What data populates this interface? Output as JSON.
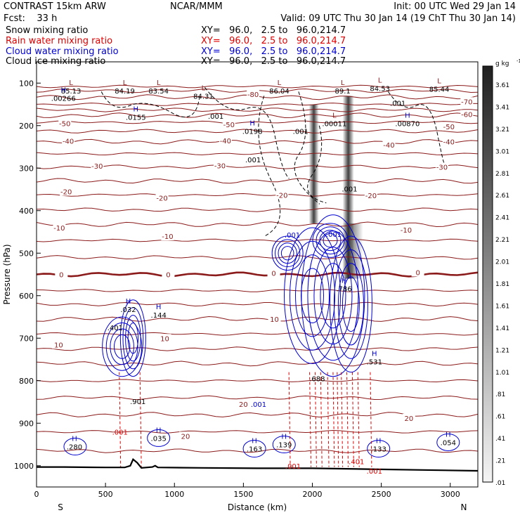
{
  "header": {
    "left_line1": "CONTRAST 15km ARW",
    "center_line1": "NCAR/MMM",
    "right_line1": "Init: 00 UTC Wed 29 Jan 14",
    "left_line2": "Fcst:    33 h",
    "right_line2": "Valid: 09 UTC Thu 30 Jan 14 (19 ChT Thu 30 Jan 14)",
    "fields": [
      {
        "label": "Snow mixing ratio",
        "xy": "XY=   96.0,   2.5 to   96.0,214.7",
        "color": "#000000"
      },
      {
        "label": "Rain water mixing ratio",
        "xy": "XY=   96.0,   2.5 to   96.0,214.7",
        "color": "#e00000"
      },
      {
        "label": "Cloud water mixing ratio",
        "xy": "XY=   96.0,   2.5 to   96.0,214.7",
        "color": "#0000d0"
      },
      {
        "label": "Cloud ice mixing ratio",
        "xy": "XY=   96.0,   2.5 to   96.0,214.7",
        "color": "#000000"
      }
    ]
  },
  "chart_data": {
    "type": "line",
    "xlabel": "Distance (km)",
    "ylabel": "Pressure (hPa)",
    "xlim": [
      0,
      3200
    ],
    "ylim": [
      1050,
      50
    ],
    "x_ticks": [
      0,
      500,
      1000,
      1500,
      2000,
      2500,
      3000
    ],
    "y_ticks": [
      100,
      200,
      300,
      400,
      500,
      600,
      700,
      800,
      900,
      1000
    ],
    "x_end_labels": {
      "left": "S",
      "right": "N"
    },
    "colorbar": {
      "unit": "g kg",
      "unit_sup": "-1",
      "labels": [
        "3.61",
        "3.41",
        "3.21",
        "3.01",
        "2.81",
        "2.61",
        "2.41",
        "2.21",
        "2.01",
        "1.81",
        "1.61",
        "1.41",
        "1.21",
        "1.01",
        ".81",
        ".61",
        ".41",
        ".21",
        ".01"
      ]
    },
    "temperature_contours": [
      {
        "label": "-80",
        "p": 126,
        "dx": 1570
      },
      {
        "label": "-70",
        "p": 143,
        "dx": 3120
      },
      {
        "label": "-60",
        "p": 173,
        "dx": 3120
      },
      {
        "label": "-50",
        "p": 195,
        "dx": 205
      },
      {
        "label": "-50",
        "p": 197,
        "dx": 1395
      },
      {
        "label": "-50",
        "p": 202,
        "dx": 2990
      },
      {
        "label": "-40",
        "p": 236,
        "dx": 230
      },
      {
        "label": "-40",
        "p": 235,
        "dx": 1370
      },
      {
        "label": "-40",
        "p": 245,
        "dx": 2555
      },
      {
        "label": "-40",
        "p": 238,
        "dx": 2990
      },
      {
        "label": "-30",
        "p": 295,
        "dx": 440
      },
      {
        "label": "-30",
        "p": 294,
        "dx": 1330
      },
      {
        "label": "-30",
        "p": 297,
        "dx": 2940
      },
      {
        "label": "-20",
        "p": 355,
        "dx": 215
      },
      {
        "label": "-20",
        "p": 370,
        "dx": 910
      },
      {
        "label": "-20",
        "p": 363,
        "dx": 1780
      },
      {
        "label": "-20",
        "p": 364,
        "dx": 2425
      },
      {
        "label": "-10",
        "p": 440,
        "dx": 165
      },
      {
        "label": "-10",
        "p": 460,
        "dx": 950
      },
      {
        "label": "-10",
        "p": 445,
        "dx": 2680
      },
      {
        "label": "0",
        "p": 550,
        "dx": 180
      },
      {
        "label": "0",
        "p": 550,
        "dx": 955
      },
      {
        "label": "0",
        "p": 547,
        "dx": 1720
      },
      {
        "label": "0",
        "p": 545,
        "dx": 2765
      },
      {
        "label": "10",
        "p": 655,
        "dx": 1725
      },
      {
        "label": "10",
        "p": 700,
        "dx": 930
      },
      {
        "label": "10",
        "p": 715,
        "dx": 160
      },
      {
        "label": "20",
        "p": 855,
        "dx": 1500
      },
      {
        "label": "20",
        "p": 888,
        "dx": 2700
      },
      {
        "label": "20",
        "p": 930,
        "dx": 1080
      }
    ],
    "extrema": [
      {
        "letter": "L",
        "value": "85.13",
        "dx": 250,
        "p": 118
      },
      {
        "letter": "L",
        "value": "84.19",
        "dx": 640,
        "p": 118
      },
      {
        "letter": "L",
        "value": "83.54",
        "dx": 885,
        "p": 118
      },
      {
        "letter": "L",
        "value": "84.31",
        "dx": 1210,
        "p": 130
      },
      {
        "letter": "L",
        "value": "86.04",
        "dx": 1760,
        "p": 118
      },
      {
        "letter": "L",
        "value": "89.1",
        "dx": 2220,
        "p": 118
      },
      {
        "letter": "L",
        "value": "84.53",
        "dx": 2490,
        "p": 112
      },
      {
        "letter": "L",
        "value": "85.44",
        "dx": 2920,
        "p": 114
      },
      {
        "letter": "H",
        "value": ".00266",
        "dx": 195,
        "p": 135
      },
      {
        "letter": "H",
        "value": ".0155",
        "dx": 720,
        "p": 180
      },
      {
        "letter": "H",
        "value": ".0198",
        "dx": 1565,
        "p": 213
      },
      {
        "letter": "L",
        "value": ".00011",
        "dx": 2160,
        "p": 195
      },
      {
        "letter": "H",
        "value": ".00870",
        "dx": 2690,
        "p": 195
      },
      {
        "letter": "H",
        "value": ".786",
        "dx": 2230,
        "p": 583
      },
      {
        "letter": "H",
        "value": ".032",
        "dx": 665,
        "p": 632
      },
      {
        "letter": "H",
        "value": ".144",
        "dx": 885,
        "p": 645
      },
      {
        "letter": "",
        "value": ".401",
        "dx": 570,
        "p": 675
      },
      {
        "letter": "H",
        "value": ".531",
        "dx": 2450,
        "p": 755
      },
      {
        "letter": "",
        "value": ".688",
        "dx": 2035,
        "p": 795
      },
      {
        "letter": "",
        "value": ".901",
        "dx": 735,
        "p": 848
      },
      {
        "letter": "H",
        "value": ".280",
        "dx": 275,
        "p": 955
      },
      {
        "letter": "H",
        "value": ".035",
        "dx": 885,
        "p": 935
      },
      {
        "letter": "H",
        "value": ".163",
        "dx": 1580,
        "p": 960
      },
      {
        "letter": "H",
        "value": ".139",
        "dx": 1795,
        "p": 950
      },
      {
        "letter": "H",
        "value": ".133",
        "dx": 2480,
        "p": 960
      },
      {
        "letter": "H",
        "value": ".054",
        "dx": 2985,
        "p": 945
      }
    ],
    "small_labels": [
      {
        "value": ".001",
        "dx": 2620,
        "p": 147,
        "color": "#000000"
      },
      {
        "value": ".001",
        "dx": 1300,
        "p": 177,
        "color": "#000000"
      },
      {
        "value": ".001",
        "dx": 1915,
        "p": 213,
        "color": "#000000"
      },
      {
        "value": ".001",
        "dx": 1570,
        "p": 280,
        "color": "#000000"
      },
      {
        "value": ".001",
        "dx": 2270,
        "p": 348,
        "color": "#000000"
      },
      {
        "value": ".001",
        "dx": 1855,
        "p": 457,
        "color": "#0000d0"
      },
      {
        "value": ".001",
        "dx": 2155,
        "p": 455,
        "color": "#0000d0"
      },
      {
        "value": ".001",
        "dx": 1610,
        "p": 855,
        "color": "#0000d0"
      },
      {
        "value": ".001",
        "dx": 605,
        "p": 920,
        "color": "#e00000"
      },
      {
        "value": ".001",
        "dx": 1860,
        "p": 1000,
        "color": "#e00000"
      },
      {
        "value": ".401",
        "dx": 2320,
        "p": 990,
        "color": "#e00000"
      },
      {
        "value": ".001",
        "dx": 2450,
        "p": 1012,
        "color": "#e00000"
      }
    ],
    "terrain": [
      [
        0,
        1003
      ],
      [
        200,
        1003
      ],
      [
        500,
        1004
      ],
      [
        640,
        1004
      ],
      [
        680,
        1000
      ],
      [
        700,
        985
      ],
      [
        730,
        993
      ],
      [
        760,
        1005
      ],
      [
        840,
        1003
      ],
      [
        860,
        1000
      ],
      [
        880,
        1004
      ],
      [
        1200,
        1005
      ],
      [
        1600,
        1006
      ],
      [
        2000,
        1006
      ],
      [
        2400,
        1008
      ],
      [
        2800,
        1010
      ],
      [
        3200,
        1012
      ]
    ]
  }
}
